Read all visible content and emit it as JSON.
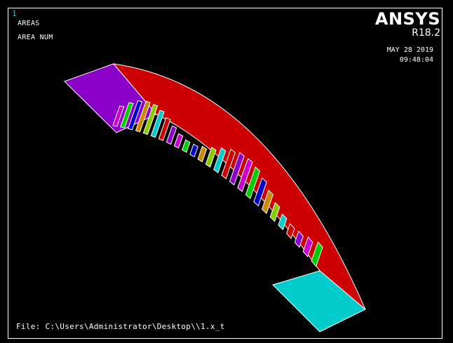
{
  "window_number": "1",
  "plot_labels": {
    "title": "AREAS",
    "subtitle": "AREA NUM"
  },
  "brand": {
    "name": "ANSYS",
    "version": "R18.2"
  },
  "timestamp": {
    "date": "MAY 28 2019",
    "time": "09:48:04"
  },
  "file_label": "File: C:\\Users\\Administrator\\Desktop\\\\1.x_t",
  "colors": {
    "background": "#000000",
    "end_face_left": "#8a00c8",
    "top_face": "#cc0000",
    "end_face_right": "#00cccc",
    "tooth_colors": [
      "#cc00cc",
      "#00cc00",
      "#0000cc",
      "#cc8800",
      "#88cc00",
      "#00cccc",
      "#cc0000",
      "#8a00c8"
    ]
  }
}
